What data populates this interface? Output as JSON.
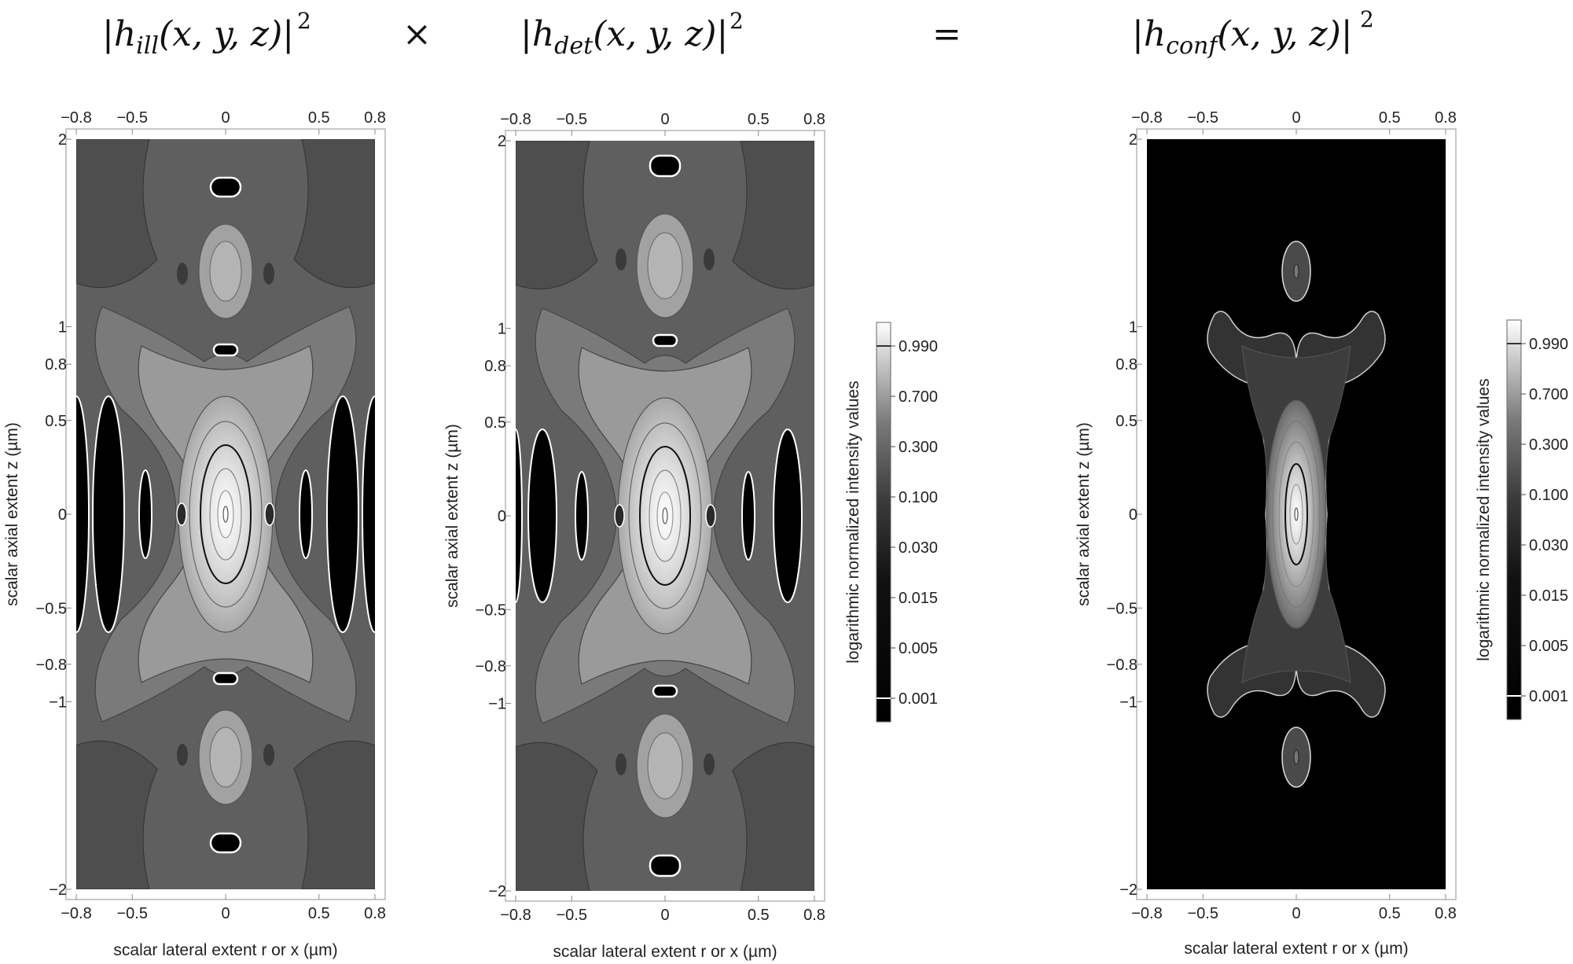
{
  "equation": {
    "operand1": {
      "pre": "|h",
      "sub": "ill",
      "post": "(x, y, z)|",
      "sup": "2"
    },
    "times": "×",
    "operand2": {
      "pre": "|h",
      "sub": "det",
      "post": "(x, y, z)|",
      "sup": "2"
    },
    "equals": "=",
    "result": {
      "pre": "|h",
      "sub": "conf",
      "post": "(x, y, z)|",
      "sup": "2"
    }
  },
  "chart_data": [
    {
      "type": "contour",
      "panel": "illumination",
      "xlabel": "scalar lateral extent r or x (µm)",
      "ylabel": "scalar axial extent z (µm)",
      "xlim": [
        -0.8,
        0.8
      ],
      "ylim": [
        -2,
        2
      ],
      "xticks": [
        -0.8,
        -0.5,
        0,
        0.5,
        0.8
      ],
      "xtick_labels": [
        "−0.8",
        "−0.5",
        "0",
        "0.5",
        "0.8"
      ],
      "yticks": [
        2,
        1,
        0.8,
        0.5,
        0,
        -0.5,
        -0.8,
        -1,
        -2
      ],
      "ytick_labels": [
        "2",
        "1",
        "0.8",
        "0.5",
        "0",
        "−0.5",
        "−0.8",
        "−1",
        "−2"
      ],
      "scale": "log",
      "colormap": "grayscale",
      "minima_z": [
        1.75,
        0.88,
        -0.88,
        -1.75
      ],
      "side_lobes_r": [
        0.24,
        0.42,
        0.64
      ]
    },
    {
      "type": "contour",
      "panel": "detection",
      "xlabel": "scalar lateral extent r or x (µm)",
      "ylabel": "scalar axial extent z (µm)",
      "xlim": [
        -0.8,
        0.8
      ],
      "ylim": [
        -2,
        2
      ],
      "xticks": [
        -0.8,
        -0.5,
        0,
        0.5,
        0.8
      ],
      "xtick_labels": [
        "−0.8",
        "−0.5",
        "0",
        "0.5",
        "0.8"
      ],
      "yticks": [
        2,
        1,
        0.8,
        0.5,
        0,
        -0.5,
        -0.8,
        -1,
        -2
      ],
      "ytick_labels": [
        "2",
        "1",
        "0.8",
        "0.5",
        "0",
        "−0.5",
        "−0.8",
        "−1",
        "−2"
      ],
      "scale": "log",
      "colormap": "grayscale",
      "minima_z": [
        1.87,
        0.93,
        -0.93,
        -1.87
      ],
      "side_lobes_r": [
        0.26,
        0.46,
        0.7
      ],
      "colorbar": {
        "label": "logarithmic  normalized intensity values",
        "ticks": [
          0.99,
          0.7,
          0.3,
          0.1,
          0.03,
          0.015,
          0.005,
          0.001
        ],
        "tick_labels": [
          "0.990",
          "0.700",
          "0.300",
          "0.100",
          "0.030",
          "0.015",
          "0.005",
          "0.001"
        ]
      }
    },
    {
      "type": "contour",
      "panel": "confocal",
      "xlabel": "scalar lateral extent r or x (µm)",
      "ylabel": "scalar axial extent z (µm)",
      "xlim": [
        -0.8,
        0.8
      ],
      "ylim": [
        -2,
        2
      ],
      "xticks": [
        -0.8,
        -0.5,
        0,
        0.5,
        0.8
      ],
      "xtick_labels": [
        "−0.8",
        "−0.5",
        "0",
        "0.5",
        "0.8"
      ],
      "yticks": [
        2,
        1,
        0.8,
        0.5,
        0,
        -0.5,
        -0.8,
        -1,
        -2
      ],
      "ytick_labels": [
        "2",
        "1",
        "0.8",
        "0.5",
        "0",
        "−0.5",
        "−0.8",
        "−1",
        "−2"
      ],
      "scale": "log",
      "colormap": "grayscale",
      "side_lobes_z": [
        1.3,
        -1.3
      ],
      "colorbar": {
        "label": "logarithmic  normalized intensity values",
        "ticks": [
          0.99,
          0.7,
          0.3,
          0.1,
          0.03,
          0.015,
          0.005,
          0.001
        ],
        "tick_labels": [
          "0.990",
          "0.700",
          "0.300",
          "0.100",
          "0.030",
          "0.015",
          "0.005",
          "0.001"
        ]
      }
    }
  ]
}
